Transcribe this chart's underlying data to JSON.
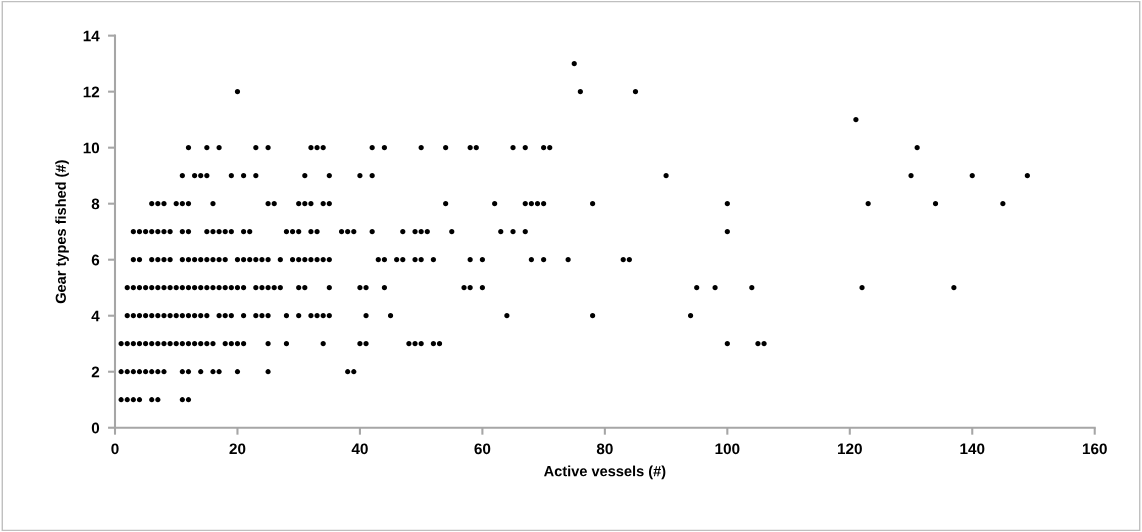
{
  "chart_data": {
    "type": "scatter",
    "xlabel": "Active vessels (#)",
    "ylabel": "Gear types fished (#)",
    "xlim": [
      0,
      160
    ],
    "xticks": [
      0,
      20,
      40,
      60,
      80,
      100,
      120,
      140,
      160
    ],
    "ylim": [
      0,
      14
    ],
    "yticks": [
      0,
      2,
      4,
      6,
      8,
      10,
      12,
      14
    ],
    "grid": false,
    "marker": "circle",
    "series": [
      {
        "color": "#000000",
        "x": [
          1,
          2,
          3,
          4,
          6,
          7,
          11,
          12,
          1,
          2,
          3,
          4,
          5,
          6,
          7,
          8,
          11,
          12,
          14,
          16,
          17,
          20,
          25,
          38,
          39,
          1,
          2,
          3,
          4,
          5,
          6,
          7,
          8,
          9,
          10,
          11,
          12,
          13,
          14,
          15,
          16,
          18,
          19,
          20,
          21,
          25,
          28,
          34,
          40,
          41,
          48,
          49,
          50,
          52,
          53,
          100,
          105,
          106,
          2,
          3,
          4,
          5,
          6,
          7,
          8,
          9,
          10,
          11,
          12,
          13,
          14,
          15,
          17,
          18,
          19,
          21,
          23,
          24,
          25,
          28,
          30,
          32,
          33,
          34,
          35,
          41,
          45,
          64,
          78,
          94,
          2,
          3,
          4,
          5,
          6,
          7,
          8,
          9,
          10,
          11,
          12,
          13,
          14,
          15,
          16,
          17,
          18,
          19,
          20,
          21,
          23,
          24,
          25,
          26,
          27,
          30,
          31,
          35,
          40,
          41,
          44,
          57,
          58,
          60,
          95,
          98,
          104,
          122,
          137,
          3,
          4,
          6,
          7,
          8,
          9,
          11,
          12,
          13,
          14,
          15,
          16,
          17,
          18,
          20,
          21,
          22,
          23,
          24,
          25,
          27,
          29,
          30,
          31,
          32,
          33,
          34,
          35,
          43,
          44,
          46,
          47,
          49,
          50,
          52,
          58,
          60,
          68,
          70,
          74,
          83,
          84,
          3,
          4,
          5,
          6,
          7,
          8,
          9,
          11,
          12,
          15,
          16,
          17,
          18,
          19,
          21,
          22,
          28,
          29,
          30,
          32,
          33,
          37,
          38,
          39,
          42,
          47,
          49,
          50,
          51,
          55,
          63,
          65,
          67,
          100,
          6,
          7,
          8,
          10,
          11,
          12,
          16,
          25,
          26,
          30,
          31,
          32,
          34,
          35,
          54,
          62,
          67,
          68,
          69,
          70,
          78,
          100,
          123,
          134,
          145,
          11,
          13,
          14,
          15,
          19,
          21,
          23,
          31,
          35,
          40,
          42,
          90,
          130,
          140,
          149,
          12,
          15,
          17,
          23,
          25,
          32,
          33,
          34,
          42,
          44,
          50,
          54,
          58,
          59,
          65,
          67,
          70,
          71,
          131,
          121,
          20,
          76,
          85,
          75
        ],
        "values": [
          1,
          1,
          1,
          1,
          1,
          1,
          1,
          1,
          2,
          2,
          2,
          2,
          2,
          2,
          2,
          2,
          2,
          2,
          2,
          2,
          2,
          2,
          2,
          2,
          2,
          3,
          3,
          3,
          3,
          3,
          3,
          3,
          3,
          3,
          3,
          3,
          3,
          3,
          3,
          3,
          3,
          3,
          3,
          3,
          3,
          3,
          3,
          3,
          3,
          3,
          3,
          3,
          3,
          3,
          3,
          3,
          3,
          3,
          4,
          4,
          4,
          4,
          4,
          4,
          4,
          4,
          4,
          4,
          4,
          4,
          4,
          4,
          4,
          4,
          4,
          4,
          4,
          4,
          4,
          4,
          4,
          4,
          4,
          4,
          4,
          4,
          4,
          4,
          4,
          4,
          5,
          5,
          5,
          5,
          5,
          5,
          5,
          5,
          5,
          5,
          5,
          5,
          5,
          5,
          5,
          5,
          5,
          5,
          5,
          5,
          5,
          5,
          5,
          5,
          5,
          5,
          5,
          5,
          5,
          5,
          5,
          5,
          5,
          5,
          5,
          5,
          5,
          5,
          5,
          6,
          6,
          6,
          6,
          6,
          6,
          6,
          6,
          6,
          6,
          6,
          6,
          6,
          6,
          6,
          6,
          6,
          6,
          6,
          6,
          6,
          6,
          6,
          6,
          6,
          6,
          6,
          6,
          6,
          6,
          6,
          6,
          6,
          6,
          6,
          6,
          6,
          6,
          6,
          6,
          6,
          6,
          7,
          7,
          7,
          7,
          7,
          7,
          7,
          7,
          7,
          7,
          7,
          7,
          7,
          7,
          7,
          7,
          7,
          7,
          7,
          7,
          7,
          7,
          7,
          7,
          7,
          7,
          7,
          7,
          7,
          7,
          7,
          7,
          7,
          7,
          8,
          8,
          8,
          8,
          8,
          8,
          8,
          8,
          8,
          8,
          8,
          8,
          8,
          8,
          8,
          8,
          8,
          8,
          8,
          8,
          8,
          8,
          8,
          8,
          8,
          9,
          9,
          9,
          9,
          9,
          9,
          9,
          9,
          9,
          9,
          9,
          9,
          9,
          9,
          9,
          10,
          10,
          10,
          10,
          10,
          10,
          10,
          10,
          10,
          10,
          10,
          10,
          10,
          10,
          10,
          10,
          10,
          10,
          10,
          11,
          12,
          12,
          12,
          13
        ]
      }
    ]
  }
}
